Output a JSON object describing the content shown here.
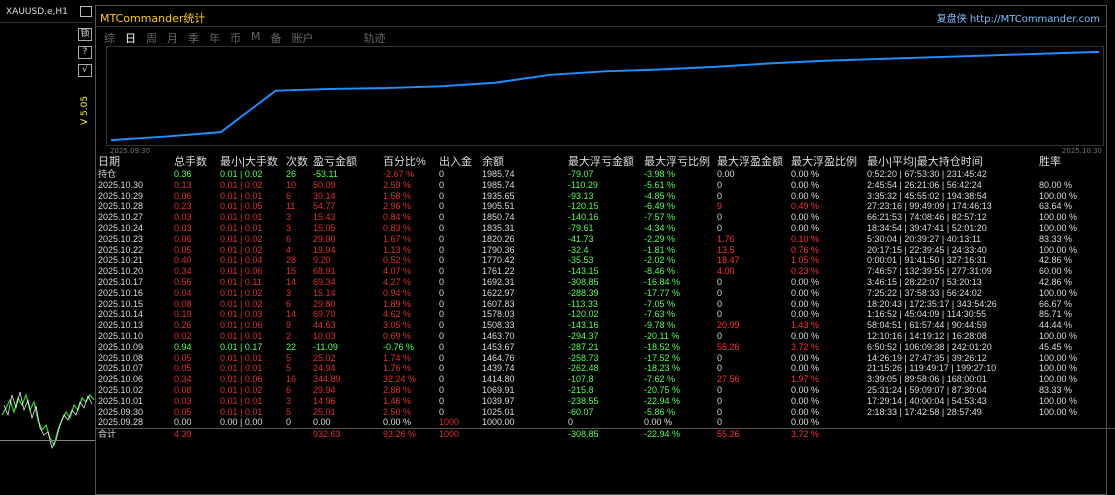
{
  "chart": {
    "symbol": "XAUUSD.e,H1",
    "side_buttons": [
      "锁",
      "?",
      "√"
    ],
    "side_label": "V 5.05"
  },
  "panel": {
    "title": "MTCommander统计",
    "brand": "复盘侠 http://MTCommander.com",
    "tabs": [
      "综",
      "日",
      "周",
      "月",
      "季",
      "年",
      "币",
      "M",
      "备",
      "账户",
      "轨迹"
    ],
    "active_tab": "日",
    "date_start": "2025.09.30",
    "date_end": "2025.10.30"
  },
  "equity": {
    "points": [
      0,
      0.04,
      0.09,
      0.56,
      0.58,
      0.59,
      0.61,
      0.65,
      0.74,
      0.78,
      0.8,
      0.83,
      0.87,
      0.9,
      0.92,
      0.94,
      0.96,
      0.98,
      1.0
    ],
    "color": "#1e90ff"
  },
  "table": {
    "headers": [
      "日期",
      "总手数",
      "最小|大手数",
      "次数",
      "盈亏金额",
      "百分比%",
      "出入金",
      "余额",
      "最大浮亏金额",
      "最大浮亏比例",
      "最大浮盈金额",
      "最大浮盈比例",
      "最小|平均|最大持仓时间",
      "胜率"
    ],
    "rows": [
      {
        "c": [
          "持仓",
          "0.36",
          "0.01 | 0.02",
          "26",
          "-53.11",
          "-2.67 %",
          "0",
          "1985.74",
          "-79.07",
          "-3.98 %",
          "0.00",
          "0.00 %",
          "0:52:20 | 67:53:30 | 231:45:42",
          ""
        ],
        "k": [
          "w",
          "g",
          "g",
          "g",
          "g",
          "r",
          "w",
          "w",
          "g",
          "g",
          "w",
          "w",
          "w",
          "w"
        ]
      },
      {
        "c": [
          "2025.10.30",
          "0.13",
          "0.01 | 0.02",
          "10",
          "50.09",
          "2.59 %",
          "0",
          "1985.74",
          "-110.29",
          "-5.61 %",
          "0",
          "0.00 %",
          "2:45:54 | 26:21:06 | 56:42:24",
          "80.00 %"
        ],
        "k": [
          "w",
          "r",
          "r",
          "r",
          "r",
          "r",
          "w",
          "w",
          "g",
          "g",
          "w",
          "w",
          "w",
          "w"
        ]
      },
      {
        "c": [
          "2025.10.29",
          "0.06",
          "0.01 | 0.01",
          "6",
          "30.14",
          "1.58 %",
          "0",
          "1935.65",
          "-93.13",
          "-4.85 %",
          "0",
          "0.00 %",
          "3:35:32 | 45:55:02 | 194:38:54",
          "100.00 %"
        ],
        "k": [
          "w",
          "r",
          "r",
          "r",
          "r",
          "r",
          "w",
          "w",
          "g",
          "g",
          "w",
          "w",
          "w",
          "w"
        ]
      },
      {
        "c": [
          "2025.10.28",
          "0.23",
          "0.01 | 0.05",
          "11",
          "54.77",
          "2.96 %",
          "0",
          "1905.51",
          "-120.15",
          "-6.49 %",
          "9",
          "0.49 %",
          "27:23:16 | 99:49:09 | 174:46:13",
          "63.64 %"
        ],
        "k": [
          "w",
          "r",
          "r",
          "r",
          "r",
          "r",
          "w",
          "w",
          "g",
          "g",
          "rr",
          "rr",
          "w",
          "w"
        ]
      },
      {
        "c": [
          "2025.10.27",
          "0.03",
          "0.01 | 0.01",
          "3",
          "15.43",
          "0.84 %",
          "0",
          "1850.74",
          "-140.16",
          "-7.57 %",
          "0",
          "0.00 %",
          "66:21:53 | 74:08:46 | 82:57:12",
          "100.00 %"
        ],
        "k": [
          "w",
          "r",
          "r",
          "r",
          "r",
          "r",
          "w",
          "w",
          "g",
          "g",
          "w",
          "w",
          "w",
          "w"
        ]
      },
      {
        "c": [
          "2025.10.24",
          "0.03",
          "0.01 | 0.01",
          "3",
          "15.05",
          "0.83 %",
          "0",
          "1835.31",
          "-79.61",
          "-4.34 %",
          "0",
          "0.00 %",
          "18:34:54 | 39:47:41 | 52:01:20",
          "100.00 %"
        ],
        "k": [
          "w",
          "r",
          "r",
          "r",
          "r",
          "r",
          "w",
          "w",
          "g",
          "g",
          "w",
          "w",
          "w",
          "w"
        ]
      },
      {
        "c": [
          "2025.10.23",
          "0.06",
          "0.01 | 0.02",
          "6",
          "29.90",
          "1.67 %",
          "0",
          "1820.26",
          "-41.73",
          "-2.29 %",
          "1.76",
          "0.10 %",
          "5:30:04 | 20:39:27 | 40:13:11",
          "83.33 %"
        ],
        "k": [
          "w",
          "r",
          "r",
          "r",
          "r",
          "r",
          "w",
          "w",
          "g",
          "g",
          "rr",
          "rr",
          "w",
          "w"
        ]
      },
      {
        "c": [
          "2025.10.22",
          "0.05",
          "0.01 | 0.02",
          "4",
          "19.94",
          "1.13 %",
          "0",
          "1790.36",
          "-32.4",
          "-1.81 %",
          "13.5",
          "0.76 %",
          "20:17:15 | 22:39:45 | 24:33:40",
          "100.00 %"
        ],
        "k": [
          "w",
          "r",
          "r",
          "r",
          "r",
          "r",
          "w",
          "w",
          "g",
          "g",
          "rr",
          "rr",
          "w",
          "w"
        ]
      },
      {
        "c": [
          "2025.10.21",
          "0.40",
          "0.01 | 0.04",
          "28",
          "9.20",
          "0.52 %",
          "0",
          "1770.42",
          "-35.53",
          "-2.02 %",
          "18.47",
          "1.05 %",
          "0:00:01 | 91:41:50 | 327:16:31",
          "42.86 %"
        ],
        "k": [
          "w",
          "r",
          "r",
          "r",
          "r",
          "r",
          "w",
          "w",
          "g",
          "g",
          "rr",
          "rr",
          "w",
          "w"
        ]
      },
      {
        "c": [
          "2025.10.20",
          "0.34",
          "0.01 | 0.06",
          "15",
          "68.91",
          "4.07 %",
          "0",
          "1761.22",
          "-143.15",
          "-8.46 %",
          "4.00",
          "0.23 %",
          "7:46:57 | 132:39:55 | 277:31:09",
          "60.00 %"
        ],
        "k": [
          "w",
          "r",
          "r",
          "r",
          "r",
          "r",
          "w",
          "w",
          "g",
          "g",
          "rr",
          "rr",
          "w",
          "w"
        ]
      },
      {
        "c": [
          "2025.10.17",
          "0.55",
          "0.01 | 0.11",
          "14",
          "69.34",
          "4.27 %",
          "0",
          "1692.31",
          "-308.85",
          "-16.84 %",
          "0",
          "0.00 %",
          "3:46:15 | 28:22:07 | 53:20:13",
          "42.86 %"
        ],
        "k": [
          "w",
          "r",
          "r",
          "r",
          "r",
          "r",
          "w",
          "w",
          "g",
          "g",
          "w",
          "w",
          "w",
          "w"
        ]
      },
      {
        "c": [
          "2025.10.16",
          "0.04",
          "0.01 | 0.02",
          "3",
          "15.14",
          "0.94 %",
          "0",
          "1622.97",
          "-288.39",
          "-17.77 %",
          "0",
          "0.00 %",
          "7:25:22 | 37:58:33 | 56:24:02",
          "100.00 %"
        ],
        "k": [
          "w",
          "r",
          "r",
          "r",
          "r",
          "r",
          "w",
          "w",
          "g",
          "g",
          "w",
          "w",
          "w",
          "w"
        ]
      },
      {
        "c": [
          "2025.10.15",
          "0.08",
          "0.01 | 0.02",
          "6",
          "29.80",
          "1.89 %",
          "0",
          "1607.83",
          "-113.33",
          "-7.05 %",
          "0",
          "0.00 %",
          "18:20:43 | 172:35:17 | 343:54:26",
          "66.67 %"
        ],
        "k": [
          "w",
          "r",
          "r",
          "r",
          "r",
          "r",
          "w",
          "w",
          "g",
          "g",
          "w",
          "w",
          "w",
          "w"
        ]
      },
      {
        "c": [
          "2025.10.14",
          "0.19",
          "0.01 | 0.03",
          "14",
          "69.70",
          "4.62 %",
          "0",
          "1578.03",
          "-120.02",
          "-7.63 %",
          "0",
          "0.00 %",
          "1:16:52 | 45:04:09 | 114:30:55",
          "85.71 %"
        ],
        "k": [
          "w",
          "r",
          "r",
          "r",
          "r",
          "r",
          "w",
          "w",
          "g",
          "g",
          "w",
          "w",
          "w",
          "w"
        ]
      },
      {
        "c": [
          "2025.10.13",
          "0.26",
          "0.01 | 0.06",
          "9",
          "44.63",
          "3.05 %",
          "0",
          "1508.33",
          "-143.16",
          "-9.78 %",
          "20.99",
          "1.43 %",
          "58:04:51 | 61:57:44 | 90:44:59",
          "44.44 %"
        ],
        "k": [
          "w",
          "r",
          "r",
          "r",
          "r",
          "r",
          "w",
          "w",
          "g",
          "g",
          "rr",
          "rr",
          "w",
          "w"
        ]
      },
      {
        "c": [
          "2025.10.10",
          "0.02",
          "0.01 | 0.01",
          "2",
          "10.03",
          "0.69 %",
          "0",
          "1463.70",
          "-294.37",
          "-20.11 %",
          "0",
          "0.00 %",
          "12:10:16 | 14:19:12 | 16:28:08",
          "100.00 %"
        ],
        "k": [
          "w",
          "r",
          "r",
          "r",
          "r",
          "r",
          "w",
          "w",
          "g",
          "g",
          "w",
          "w",
          "w",
          "w"
        ]
      },
      {
        "c": [
          "2025.10.09",
          "0.94",
          "0.01 | 0.17",
          "22",
          "-11.09",
          "-0.76 %",
          "0",
          "1453.67",
          "-287.21",
          "-18.52 %",
          "55.26",
          "3.72 %",
          "6:50:52 | 106:09:38 | 242:01:20",
          "45.45 %"
        ],
        "k": [
          "w",
          "g",
          "g",
          "g",
          "g",
          "g",
          "w",
          "w",
          "g",
          "g",
          "rr",
          "rr",
          "w",
          "w"
        ]
      },
      {
        "c": [
          "2025.10.08",
          "0.05",
          "0.01 | 0.01",
          "5",
          "25.02",
          "1.74 %",
          "0",
          "1464.76",
          "-258.73",
          "-17.52 %",
          "0",
          "0.00 %",
          "14:26:19 | 27:47:35 | 39:26:12",
          "100.00 %"
        ],
        "k": [
          "w",
          "r",
          "r",
          "r",
          "r",
          "r",
          "w",
          "w",
          "g",
          "g",
          "w",
          "w",
          "w",
          "w"
        ]
      },
      {
        "c": [
          "2025.10.07",
          "0.05",
          "0.01 | 0.01",
          "5",
          "24.94",
          "1.76 %",
          "0",
          "1439.74",
          "-262.48",
          "-18.23 %",
          "0",
          "0.00 %",
          "21:15:26 | 119:49:17 | 199:27:10",
          "100.00 %"
        ],
        "k": [
          "w",
          "r",
          "r",
          "r",
          "r",
          "r",
          "w",
          "w",
          "g",
          "g",
          "w",
          "w",
          "w",
          "w"
        ]
      },
      {
        "c": [
          "2025.10.06",
          "0.34",
          "0.01 | 0.06",
          "16",
          "344.89",
          "32.24 %",
          "0",
          "1414.80",
          "-107.8",
          "-7.62 %",
          "27.56",
          "1.97 %",
          "3:39:05 | 89:58:06 | 168:00:01",
          "100.00 %"
        ],
        "k": [
          "w",
          "r",
          "r",
          "r",
          "r",
          "r",
          "w",
          "w",
          "g",
          "g",
          "rr",
          "rr",
          "w",
          "w"
        ]
      },
      {
        "c": [
          "2025.10.02",
          "0.08",
          "0.01 | 0.02",
          "6",
          "29.94",
          "2.88 %",
          "0",
          "1069.91",
          "-215.8",
          "-20.75 %",
          "0",
          "0.00 %",
          "25:31:24 | 59:09:07 | 87:30:04",
          "83.33 %"
        ],
        "k": [
          "w",
          "r",
          "r",
          "r",
          "r",
          "r",
          "w",
          "w",
          "g",
          "g",
          "w",
          "w",
          "w",
          "w"
        ]
      },
      {
        "c": [
          "2025.10.01",
          "0.03",
          "0.01 | 0.01",
          "3",
          "14.96",
          "1.46 %",
          "0",
          "1039.97",
          "-238.55",
          "-22.94 %",
          "0",
          "0.00 %",
          "17:29:14 | 40:00:04 | 54:53:43",
          "100.00 %"
        ],
        "k": [
          "w",
          "r",
          "r",
          "r",
          "r",
          "r",
          "w",
          "w",
          "g",
          "g",
          "w",
          "w",
          "w",
          "w"
        ]
      },
      {
        "c": [
          "2025.09.30",
          "0.05",
          "0.01 | 0.01",
          "5",
          "25.01",
          "2.50 %",
          "0",
          "1025.01",
          "-60.07",
          "-5.86 %",
          "0",
          "0.00 %",
          "2:18:33 | 17:42:58 | 28:57:49",
          "100.00 %"
        ],
        "k": [
          "w",
          "r",
          "r",
          "r",
          "r",
          "r",
          "w",
          "w",
          "g",
          "g",
          "w",
          "w",
          "w",
          "w"
        ]
      },
      {
        "c": [
          "2025.09.28",
          "0.00",
          "0.00 | 0.00",
          "0",
          "0.00",
          "0.00 %",
          "1000",
          "1000.00",
          "0",
          "0.00 %",
          "0",
          "0.00 %",
          "",
          ""
        ],
        "k": [
          "w",
          "w",
          "w",
          "w",
          "w",
          "w",
          "r",
          "w",
          "w",
          "w",
          "w",
          "w",
          "w",
          "w"
        ]
      }
    ],
    "total": {
      "c": [
        "合计",
        "4.39",
        "",
        "",
        "932.63",
        "93.26 %",
        "1000",
        "",
        "-308.85",
        "-22.94 %",
        "55.26",
        "3.72 %",
        "",
        ""
      ],
      "k": [
        "w",
        "r",
        "w",
        "w",
        "r",
        "r",
        "r",
        "w",
        "g",
        "g",
        "rr",
        "rr",
        "w",
        "w"
      ]
    }
  },
  "colors": {
    "profit": "#e03030",
    "loss": "#55ff55",
    "accent": "#ffcc00",
    "line": "#1e90ff"
  }
}
